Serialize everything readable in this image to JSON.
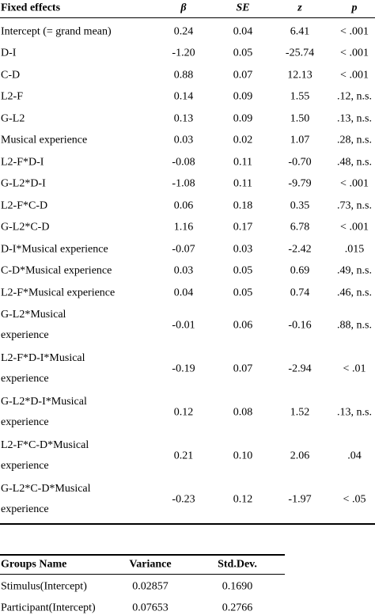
{
  "fixed_effects": {
    "header": [
      "Fixed effects",
      "β",
      "SE",
      "z",
      "p"
    ],
    "rows": [
      [
        "Intercept (= grand mean)",
        "0.24",
        "0.04",
        "6.41",
        "< .001"
      ],
      [
        "D-I",
        "-1.20",
        "0.05",
        "-25.74",
        "< .001"
      ],
      [
        "C-D",
        "0.88",
        "0.07",
        "12.13",
        "< .001"
      ],
      [
        "L2-F",
        "0.14",
        "0.09",
        "1.55",
        ".12, n.s."
      ],
      [
        "G-L2",
        "0.13",
        "0.09",
        "1.50",
        ".13, n.s."
      ],
      [
        "Musical experience",
        "0.03",
        "0.02",
        "1.07",
        ".28, n.s."
      ],
      [
        "L2-F*D-I",
        "-0.08",
        "0.11",
        "-0.70",
        ".48, n.s."
      ],
      [
        "G-L2*D-I",
        "-1.08",
        "0.11",
        "-9.79",
        "< .001"
      ],
      [
        "L2-F*C-D",
        "0.06",
        "0.18",
        "0.35",
        ".73, n.s."
      ],
      [
        "G-L2*C-D",
        "1.16",
        "0.17",
        "6.78",
        "< .001"
      ],
      [
        "D-I*Musical experience",
        "-0.07",
        "0.03",
        "-2.42",
        ".015"
      ],
      [
        "C-D*Musical experience",
        "0.03",
        "0.05",
        "0.69",
        ".49, n.s."
      ],
      [
        "L2-F*Musical experience",
        "0.04",
        "0.05",
        "0.74",
        ".46, n.s."
      ],
      [
        "G-L2*Musical experience",
        "-0.01",
        "0.06",
        "-0.16",
        ".88, n.s."
      ],
      [
        "L2-F*D-I*Musical experience",
        "-0.19",
        "0.07",
        "-2.94",
        "< .01"
      ],
      [
        "G-L2*D-I*Musical experience",
        "0.12",
        "0.08",
        "1.52",
        ".13, n.s."
      ],
      [
        "L2-F*C-D*Musical experience",
        "0.21",
        "0.10",
        "2.06",
        ".04"
      ],
      [
        "G-L2*C-D*Musical experience",
        "-0.23",
        "0.12",
        "-1.97",
        "< .05"
      ]
    ]
  },
  "random_effects": {
    "header": [
      "Groups Name",
      "Variance",
      "Std.Dev."
    ],
    "rows": [
      [
        "Stimulus(Intercept)",
        "0.02857",
        "0.1690"
      ],
      [
        "Participant(Intercept)",
        "0.07653",
        "0.2766"
      ]
    ]
  }
}
